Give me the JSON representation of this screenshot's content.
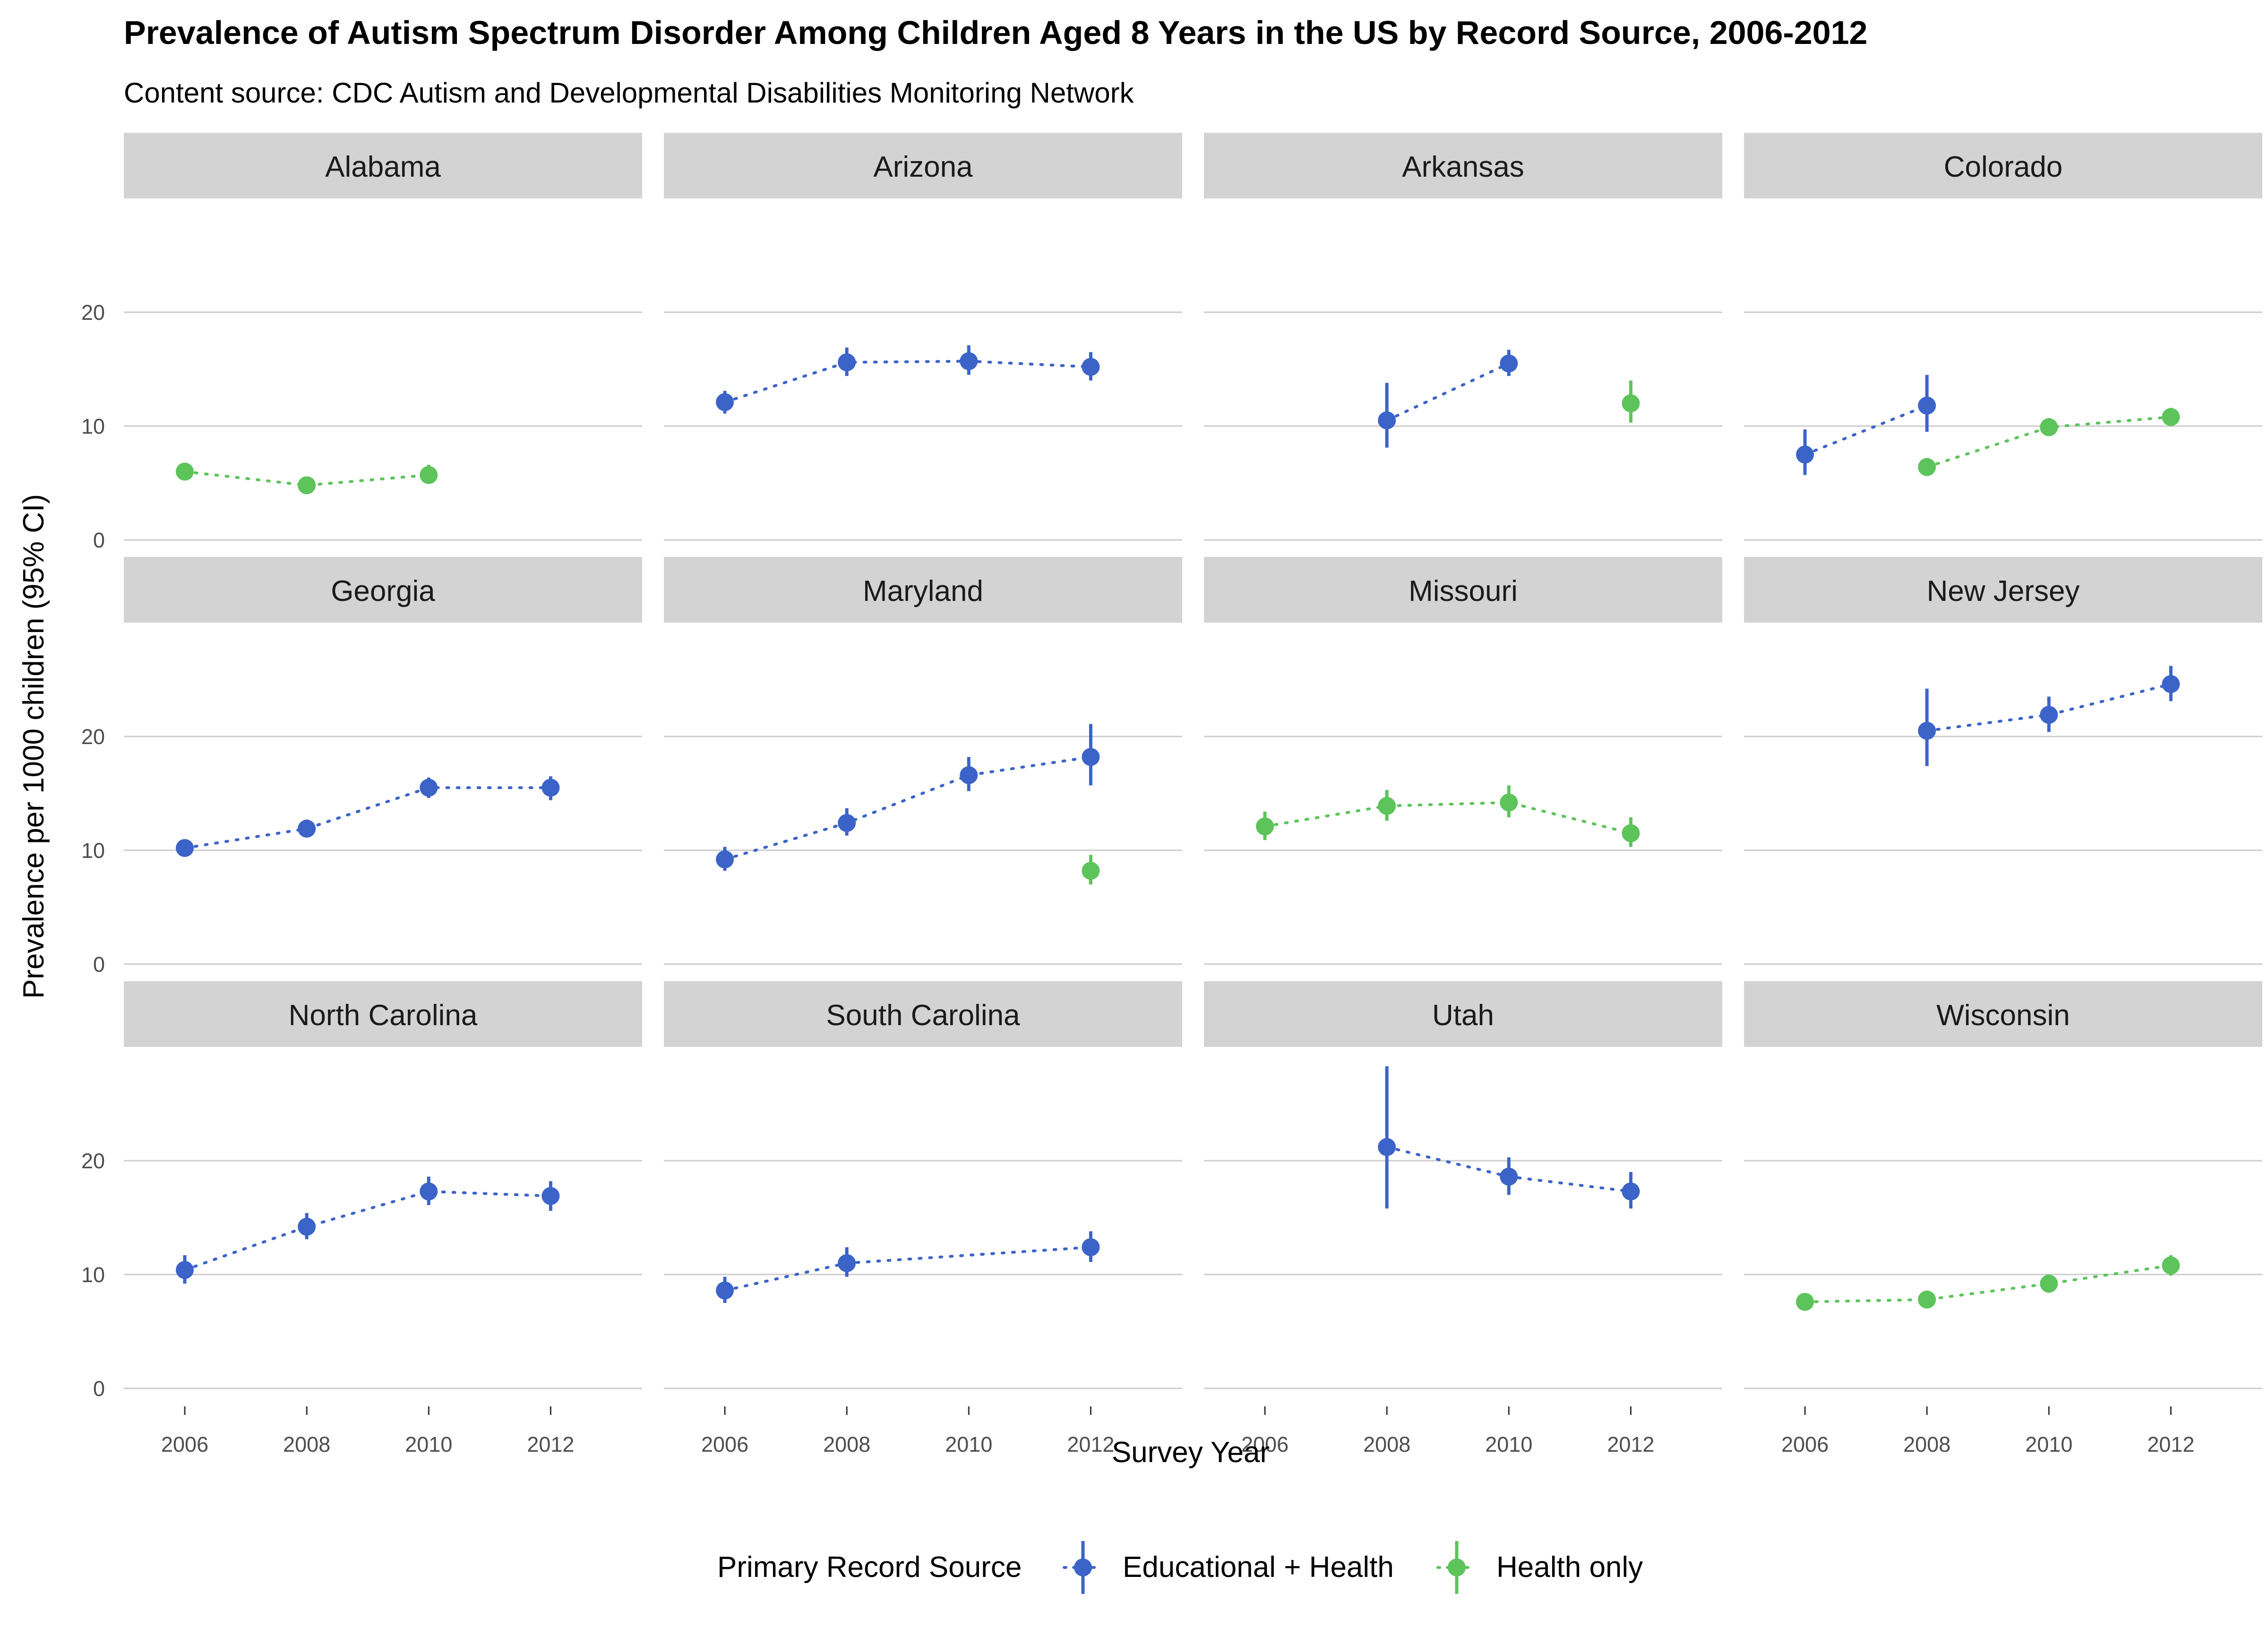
{
  "chart_data": {
    "type": "scatter",
    "title": "Prevalence of Autism Spectrum Disorder Among Children Aged 8 Years in the US by Record Source, 2006-2012",
    "subtitle": "Content source: CDC Autism and Developmental Disabilities Monitoring Network",
    "xlabel": "Survey Year",
    "ylabel": "Prevalence per 1000 children (95% CI)",
    "x_ticks": [
      2006,
      2008,
      2010,
      2012
    ],
    "y_ticks": [
      0,
      10,
      20
    ],
    "xlim": [
      2005,
      2013.5
    ],
    "ylim": [
      -1.5,
      30
    ],
    "grid": "horizontal major",
    "legend": {
      "title": "Primary Record Source",
      "position": "bottom",
      "entries": [
        {
          "label": "Educational + Health",
          "color": "#3b63c8"
        },
        {
          "label": "Health only",
          "color": "#5cc45a"
        }
      ]
    },
    "panels": [
      {
        "state": "Alabama",
        "series": [
          {
            "name": "Health only",
            "x": [
              2006,
              2008,
              2010
            ],
            "y": [
              6.0,
              4.8,
              5.7
            ],
            "ci_low": [
              5.5,
              4.3,
              5.0
            ],
            "ci_high": [
              6.6,
              5.3,
              6.6
            ]
          }
        ]
      },
      {
        "state": "Arizona",
        "series": [
          {
            "name": "Educational + Health",
            "x": [
              2006,
              2008,
              2010,
              2012
            ],
            "y": [
              12.1,
              15.6,
              15.7,
              15.2
            ],
            "ci_low": [
              11.1,
              14.4,
              14.5,
              14.0
            ],
            "ci_high": [
              13.1,
              16.9,
              17.1,
              16.5
            ]
          }
        ]
      },
      {
        "state": "Arkansas",
        "series": [
          {
            "name": "Educational + Health",
            "x": [
              2008,
              2010
            ],
            "y": [
              10.5,
              15.5
            ],
            "ci_low": [
              8.1,
              14.4
            ],
            "ci_high": [
              13.8,
              16.7
            ]
          },
          {
            "name": "Health only",
            "x": [
              2012
            ],
            "y": [
              12.0
            ],
            "ci_low": [
              10.3
            ],
            "ci_high": [
              14.0
            ]
          }
        ]
      },
      {
        "state": "Colorado",
        "series": [
          {
            "name": "Educational + Health",
            "x": [
              2006,
              2008
            ],
            "y": [
              7.5,
              11.8
            ],
            "ci_low": [
              5.7,
              9.5
            ],
            "ci_high": [
              9.7,
              14.5
            ]
          },
          {
            "name": "Health only",
            "x": [
              2008,
              2010,
              2012
            ],
            "y": [
              6.4,
              9.9,
              10.8
            ],
            "ci_low": [
              5.8,
              9.2,
              10.0
            ],
            "ci_high": [
              7.2,
              10.7,
              11.6
            ]
          }
        ]
      },
      {
        "state": "Georgia",
        "series": [
          {
            "name": "Educational + Health",
            "x": [
              2006,
              2008,
              2010,
              2012
            ],
            "y": [
              10.2,
              11.9,
              15.5,
              15.5
            ],
            "ci_low": [
              9.6,
              11.2,
              14.6,
              14.4
            ],
            "ci_high": [
              10.8,
              12.7,
              16.4,
              16.5
            ]
          }
        ]
      },
      {
        "state": "Maryland",
        "series": [
          {
            "name": "Educational + Health",
            "x": [
              2006,
              2008,
              2010,
              2012
            ],
            "y": [
              9.2,
              12.4,
              16.6,
              18.2
            ],
            "ci_low": [
              8.2,
              11.3,
              15.2,
              15.7
            ],
            "ci_high": [
              10.3,
              13.7,
              18.2,
              21.1
            ]
          },
          {
            "name": "Health only",
            "x": [
              2012
            ],
            "y": [
              8.2
            ],
            "ci_low": [
              7.0
            ],
            "ci_high": [
              9.6
            ]
          }
        ]
      },
      {
        "state": "Missouri",
        "series": [
          {
            "name": "Health only",
            "x": [
              2006,
              2008,
              2010,
              2012
            ],
            "y": [
              12.1,
              13.9,
              14.2,
              11.5
            ],
            "ci_low": [
              10.9,
              12.6,
              12.9,
              10.3
            ],
            "ci_high": [
              13.4,
              15.3,
              15.7,
              12.9
            ]
          }
        ]
      },
      {
        "state": "New Jersey",
        "series": [
          {
            "name": "Educational + Health",
            "x": [
              2008,
              2010,
              2012
            ],
            "y": [
              20.5,
              21.9,
              24.6
            ],
            "ci_low": [
              17.4,
              20.4,
              23.1
            ],
            "ci_high": [
              24.2,
              23.5,
              26.2
            ]
          }
        ]
      },
      {
        "state": "North Carolina",
        "series": [
          {
            "name": "Educational + Health",
            "x": [
              2006,
              2008,
              2010,
              2012
            ],
            "y": [
              10.4,
              14.2,
              17.3,
              16.9
            ],
            "ci_low": [
              9.2,
              13.1,
              16.1,
              15.6
            ],
            "ci_high": [
              11.7,
              15.4,
              18.6,
              18.2
            ]
          }
        ]
      },
      {
        "state": "South Carolina",
        "series": [
          {
            "name": "Educational + Health",
            "x": [
              2006,
              2008,
              2010,
              2012
            ],
            "y": [
              8.6,
              11.0,
              null,
              12.4
            ],
            "ci_low": [
              7.5,
              9.8,
              null,
              11.1
            ],
            "ci_high": [
              9.8,
              12.4,
              null,
              13.8
            ]
          }
        ]
      },
      {
        "state": "Utah",
        "series": [
          {
            "name": "Educational + Health",
            "x": [
              2008,
              2010,
              2012
            ],
            "y": [
              21.2,
              18.6,
              17.3
            ],
            "ci_low": [
              15.8,
              17.0,
              15.8
            ],
            "ci_high": [
              28.3,
              20.3,
              19.0
            ]
          }
        ]
      },
      {
        "state": "Wisconsin",
        "series": [
          {
            "name": "Health only",
            "x": [
              2006,
              2008,
              2010,
              2012
            ],
            "y": [
              7.6,
              7.8,
              9.2,
              10.8
            ],
            "ci_low": [
              6.9,
              7.1,
              8.4,
              9.9
            ],
            "ci_high": [
              8.3,
              8.5,
              10.0,
              11.7
            ]
          }
        ]
      }
    ]
  }
}
